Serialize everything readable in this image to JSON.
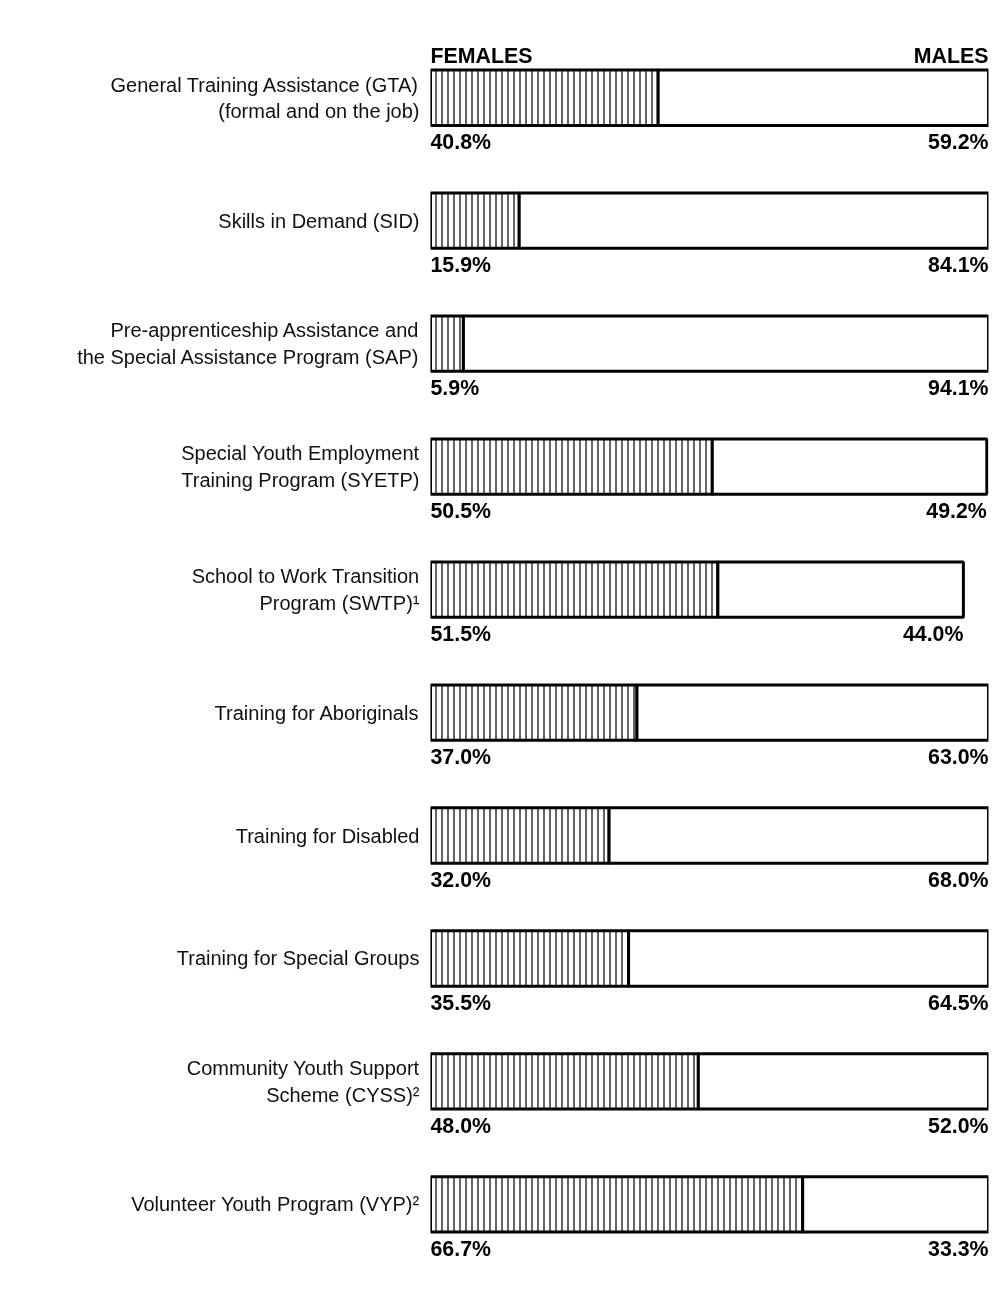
{
  "chart_data": {
    "type": "bar",
    "orientation": "horizontal",
    "stacked": true,
    "grid": false,
    "tick_labels": "y",
    "xlim": [
      0,
      100
    ],
    "categories": [
      "General Training Assistance (GTA)\n(formal and on the job)",
      "Skills in Demand (SID)",
      "Pre-apprenticeship Assistance and\nthe Special Assistance Program (SAP)",
      "Special Youth Employment\nTraining Program (SYETP)",
      "School to Work Transition\nProgram (SWTP)¹",
      "Training for Aboriginals",
      "Training for Disabled",
      "Training for Special Groups",
      "Community Youth Support\nScheme (CYSS)²",
      "Volunteer Youth Program (VYP)²"
    ],
    "series": [
      {
        "name": "FEMALES",
        "color": "#000000",
        "values": [
          40.8,
          15.9,
          5.9,
          50.5,
          51.5,
          37.0,
          32.0,
          35.5,
          48.0,
          66.7
        ],
        "value_labels": [
          "40.8%",
          "15.9%",
          "5.9%",
          "50.5%",
          "51.5%",
          "37.0%",
          "32.0%",
          "35.5%",
          "48.0%",
          "66.7%"
        ]
      },
      {
        "name": "MALES",
        "color": "#ffffff",
        "values": [
          59.2,
          84.1,
          94.1,
          49.2,
          44.0,
          63.0,
          68.0,
          64.5,
          52.0,
          33.3
        ],
        "value_labels": [
          "59.2%",
          "84.1%",
          "94.1%",
          "49.2%",
          "44.0%",
          "63.0%",
          "68.0%",
          "64.5%",
          "52.0%",
          "33.3%"
        ]
      }
    ]
  }
}
